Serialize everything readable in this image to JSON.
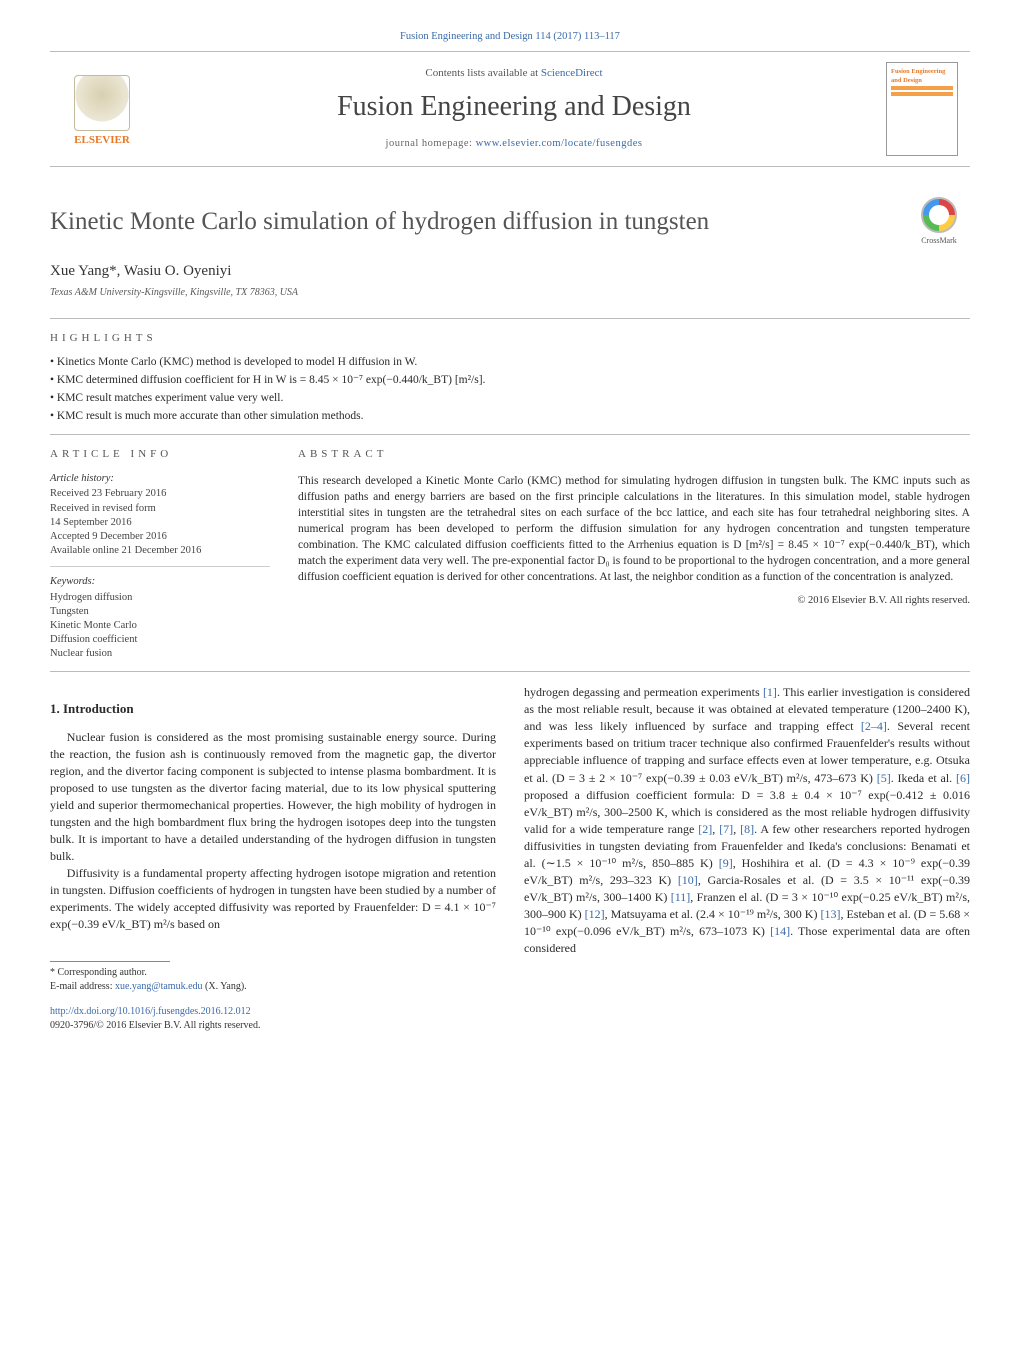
{
  "prehead": "Fusion Engineering and Design 114 (2017) 113–117",
  "header": {
    "contents_prefix": "Contents lists available at ",
    "contents_link": "ScienceDirect",
    "journal": "Fusion Engineering and Design",
    "homepage_prefix": "journal homepage: ",
    "homepage_link": "www.elsevier.com/locate/fusengdes",
    "publisher_name": "ELSEVIER",
    "cover_label": "Fusion Engineering and Design"
  },
  "title": "Kinetic Monte Carlo simulation of hydrogen diffusion in tungsten",
  "crossmark_label": "CrossMark",
  "authors": "Xue Yang*, Wasiu O. Oyeniyi",
  "affiliation": "Texas A&M University-Kingsville, Kingsville, TX 78363, USA",
  "highlights_label": "HIGHLIGHTS",
  "highlights": [
    "Kinetics Monte Carlo (KMC) method is developed to model H diffusion in W.",
    "KMC determined diffusion coefficient for H in W is = 8.45 × 10⁻⁷ exp(−0.440/k_BT) [m²/s].",
    "KMC result matches experiment value very well.",
    "KMC result is much more accurate than other simulation methods."
  ],
  "article_info": {
    "label": "ARTICLE INFO",
    "history_label": "Article history:",
    "history": [
      "Received 23 February 2016",
      "Received in revised form",
      "14 September 2016",
      "Accepted 9 December 2016",
      "Available online 21 December 2016"
    ],
    "keywords_label": "Keywords:",
    "keywords": [
      "Hydrogen diffusion",
      "Tungsten",
      "Kinetic Monte Carlo",
      "Diffusion coefficient",
      "Nuclear fusion"
    ]
  },
  "abstract_label": "ABSTRACT",
  "abstract": "This research developed a Kinetic Monte Carlo (KMC) method for simulating hydrogen diffusion in tungsten bulk. The KMC inputs such as diffusion paths and energy barriers are based on the first principle calculations in the literatures. In this simulation model, stable hydrogen interstitial sites in tungsten are the tetrahedral sites on each surface of the bcc lattice, and each site has four tetrahedral neighboring sites. A numerical program has been developed to perform the diffusion simulation for any hydrogen concentration and tungsten temperature combination. The KMC calculated diffusion coefficients fitted to the Arrhenius equation is D [m²/s] = 8.45 × 10⁻⁷ exp(−0.440/k_BT), which match the experiment data very well. The pre-exponential factor D₀ is found to be proportional to the hydrogen concentration, and a more general diffusion coefficient equation is derived for other concentrations. At last, the neighbor condition as a function of the concentration is analyzed.",
  "abstract_copyright": "© 2016 Elsevier B.V. All rights reserved.",
  "intro": {
    "heading": "1.  Introduction",
    "p1": "Nuclear fusion is considered as the most promising sustainable energy source. During the reaction, the fusion ash is continuously removed from the magnetic gap, the divertor region, and the divertor facing component is subjected to intense plasma bombardment. It is proposed to use tungsten as the divertor facing material, due to its low physical sputtering yield and superior thermomechanical properties. However, the high mobility of hydrogen in tungsten and the high bombardment flux bring the hydrogen isotopes deep into the tungsten bulk. It is important to have a detailed understanding of the hydrogen diffusion in tungsten bulk.",
    "p2a": "Diffusivity is a fundamental property affecting hydrogen isotope migration and retention in tungsten. Diffusion coefficients of hydrogen in tungsten have been studied by a number of experiments. The widely accepted diffusivity was reported by Frauenfelder: D = 4.1 × 10⁻⁷ exp(−0.39 eV/k_BT) m²/s based on ",
    "p2b": "hydrogen degassing and permeation experiments [1]. This earlier investigation is considered as the most reliable result, because it was obtained at elevated temperature (1200–2400 K), and was less likely influenced by surface and trapping effect [2–4]. Several recent experiments based on tritium tracer technique also confirmed Frauenfelder's results without appreciable influence of trapping and surface effects even at lower temperature, e.g. Otsuka et al. (D = 3 ± 2 × 10⁻⁷ exp(−0.39 ± 0.03 eV/k_BT) m²/s, 473–673 K) [5]. Ikeda et al. [6] proposed a diffusion coefficient formula: D = 3.8 ± 0.4 × 10⁻⁷ exp(−0.412 ± 0.016 eV/k_BT) m²/s, 300–2500 K, which is considered as the most reliable hydrogen diffusivity valid for a wide temperature range [2], [7], [8]. A few other researchers reported hydrogen diffusivities in tungsten deviating from Frauenfelder and Ikeda's conclusions: Benamati et al. (∼1.5 × 10⁻¹⁰ m²/s, 850–885 K) [9], Hoshihira et al. (D = 4.3 × 10⁻⁹ exp(−0.39 eV/k_BT) m²/s, 293–323 K) [10], Garcia-Rosales et al. (D = 3.5 × 10⁻¹¹ exp(−0.39 eV/k_BT) m²/s, 300–1400 K) [11], Franzen el al. (D = 3 × 10⁻¹⁰ exp(−0.25 eV/k_BT) m²/s, 300–900 K) [12], Matsuyama et al. (2.4 × 10⁻¹⁹ m²/s, 300 K) [13], Esteban et al. (D = 5.68 × 10⁻¹⁰ exp(−0.096 eV/k_BT) m²/s, 673–1073 K) [14]. Those experimental data are often considered"
  },
  "footnote": {
    "corresponding": "* Corresponding author.",
    "email_label": "E-mail address: ",
    "email": "xue.yang@tamuk.edu",
    "email_suffix": " (X. Yang)."
  },
  "doi": {
    "url": "http://dx.doi.org/10.1016/j.fusengdes.2016.12.012",
    "issn": "0920-3796/© 2016 Elsevier B.V. All rights reserved."
  },
  "colors": {
    "link": "#3a6aa8",
    "accent": "#e97826",
    "text": "#2a2a2a",
    "rule": "#bbbbbb"
  }
}
